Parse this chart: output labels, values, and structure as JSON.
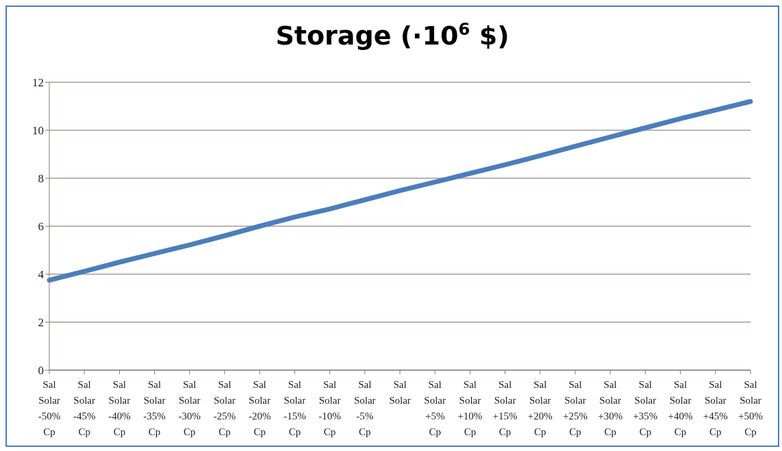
{
  "chart_data": {
    "type": "line",
    "title": "Storage (·10$^{6}$ $)",
    "categories": [
      "Sal Solar -50% Cp",
      "Sal Solar -45% Cp",
      "Sal Solar -40% Cp",
      "Sal Solar -35% Cp",
      "Sal Solar -30% Cp",
      "Sal Solar -25% Cp",
      "Sal Solar -20% Cp",
      "Sal Solar -15% Cp",
      "Sal Solar -10% Cp",
      "Sal Solar -5% Cp",
      "Sal Solar",
      "Sal Solar +5% Cp",
      "Sal Solar +10% Cp",
      "Sal Solar +15% Cp",
      "Sal Solar +20% Cp",
      "Sal Solar +25% Cp",
      "Sal Solar +30% Cp",
      "Sal Solar +35% Cp",
      "Sal Solar +40% Cp",
      "Sal Solar +45% Cp",
      "Sal Solar +50% Cp"
    ],
    "series": [
      {
        "color": "#4a7ebb",
        "values": [
          3.75,
          4.12,
          4.5,
          4.86,
          5.22,
          5.6,
          6.0,
          6.38,
          6.72,
          7.1,
          7.48,
          7.84,
          8.2,
          8.56,
          8.94,
          9.33,
          9.72,
          10.1,
          10.48,
          10.84,
          11.2
        ]
      }
    ],
    "ylim": [
      0,
      12
    ],
    "yticks": [
      0,
      2,
      4,
      6,
      8,
      10,
      12
    ],
    "grid": "y",
    "legend": false,
    "marker": "none",
    "line_style": "solid"
  }
}
